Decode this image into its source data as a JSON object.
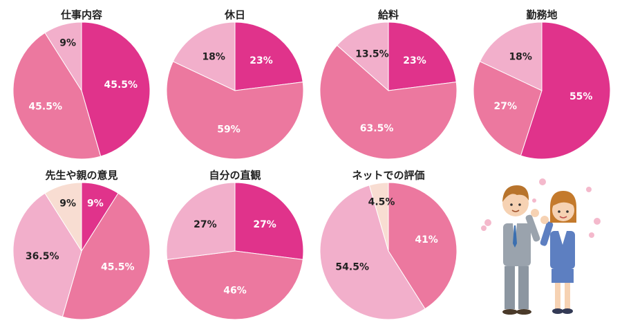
{
  "colors": {
    "magenta": "#e0338b",
    "rose": "#ec789f",
    "pink": "#f2afcb",
    "peach": "#f8ddd2",
    "label_light": "#ffffff",
    "label_dark": "#222222"
  },
  "chart_data": [
    {
      "type": "pie",
      "title": "仕事内容",
      "slices": [
        {
          "value": 45.5,
          "label": "45.5%",
          "color": "magenta",
          "label_color": "label_light"
        },
        {
          "value": 45.5,
          "label": "45.5%",
          "color": "rose",
          "label_color": "label_light"
        },
        {
          "value": 9,
          "label": "9%",
          "color": "pink",
          "label_color": "label_dark"
        }
      ]
    },
    {
      "type": "pie",
      "title": "休日",
      "slices": [
        {
          "value": 23,
          "label": "23%",
          "color": "magenta",
          "label_color": "label_light"
        },
        {
          "value": 59,
          "label": "59%",
          "color": "rose",
          "label_color": "label_light"
        },
        {
          "value": 18,
          "label": "18%",
          "color": "pink",
          "label_color": "label_dark"
        }
      ]
    },
    {
      "type": "pie",
      "title": "給料",
      "slices": [
        {
          "value": 23,
          "label": "23%",
          "color": "magenta",
          "label_color": "label_light"
        },
        {
          "value": 63.5,
          "label": "63.5%",
          "color": "rose",
          "label_color": "label_light"
        },
        {
          "value": 13.5,
          "label": "13.5%",
          "color": "pink",
          "label_color": "label_dark"
        }
      ]
    },
    {
      "type": "pie",
      "title": "勤務地",
      "slices": [
        {
          "value": 55,
          "label": "55%",
          "color": "magenta",
          "label_color": "label_light"
        },
        {
          "value": 27,
          "label": "27%",
          "color": "rose",
          "label_color": "label_light"
        },
        {
          "value": 18,
          "label": "18%",
          "color": "pink",
          "label_color": "label_dark"
        }
      ]
    },
    {
      "type": "pie",
      "title": "先生や親の意見",
      "slices": [
        {
          "value": 9,
          "label": "9%",
          "color": "magenta",
          "label_color": "label_light"
        },
        {
          "value": 45.5,
          "label": "45.5%",
          "color": "rose",
          "label_color": "label_light"
        },
        {
          "value": 36.5,
          "label": "36.5%",
          "color": "pink",
          "label_color": "label_dark"
        },
        {
          "value": 9,
          "label": "9%",
          "color": "peach",
          "label_color": "label_dark"
        }
      ]
    },
    {
      "type": "pie",
      "title": "自分の直観",
      "slices": [
        {
          "value": 27,
          "label": "27%",
          "color": "magenta",
          "label_color": "label_light"
        },
        {
          "value": 46,
          "label": "46%",
          "color": "rose",
          "label_color": "label_light"
        },
        {
          "value": 27,
          "label": "27%",
          "color": "pink",
          "label_color": "label_dark"
        }
      ]
    },
    {
      "type": "pie",
      "title": "ネットでの評価",
      "slices": [
        {
          "value": 41,
          "label": "41%",
          "color": "rose",
          "label_color": "label_light"
        },
        {
          "value": 54.5,
          "label": "54.5%",
          "color": "pink",
          "label_color": "label_dark"
        },
        {
          "value": 4.5,
          "label": "4.5%",
          "color": "peach",
          "label_color": "label_dark"
        }
      ]
    }
  ]
}
